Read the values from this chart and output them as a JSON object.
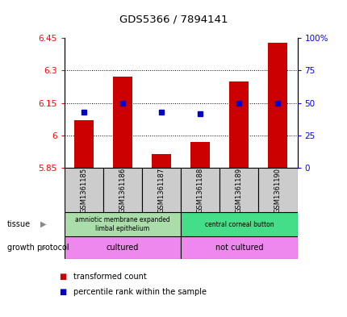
{
  "title": "GDS5366 / 7894141",
  "samples": [
    "GSM1361185",
    "GSM1361186",
    "GSM1361187",
    "GSM1361188",
    "GSM1361189",
    "GSM1361190"
  ],
  "transformed_counts": [
    6.07,
    6.27,
    5.915,
    5.97,
    6.25,
    6.43
  ],
  "percentile_ranks": [
    43,
    50,
    43,
    42,
    50,
    50
  ],
  "ymin": 5.85,
  "ymax": 6.45,
  "yticks": [
    5.85,
    6.0,
    6.15,
    6.3,
    6.45
  ],
  "ytick_labels": [
    "5.85",
    "6",
    "6.15",
    "6.3",
    "6.45"
  ],
  "right_yticks": [
    0,
    25,
    50,
    75,
    100
  ],
  "right_ytick_labels": [
    "0",
    "25",
    "50",
    "75",
    "100%"
  ],
  "grid_lines": [
    6.0,
    6.15,
    6.3
  ],
  "bar_color": "#cc0000",
  "dot_color": "#0000cc",
  "bar_base": 5.85,
  "tissue_label_1": "amniotic membrane expanded\nlimbal epithelium",
  "tissue_label_2": "central corneal button",
  "tissue_color_1": "#aaddaa",
  "tissue_color_2": "#44dd88",
  "growth_label_1": "cultured",
  "growth_label_2": "not cultured",
  "growth_color": "#ee88ee",
  "sample_bg_color": "#cccccc",
  "legend_bar_label": "transformed count",
  "legend_dot_label": "percentile rank within the sample",
  "tissue_row_label": "tissue",
  "growth_row_label": "growth protocol"
}
